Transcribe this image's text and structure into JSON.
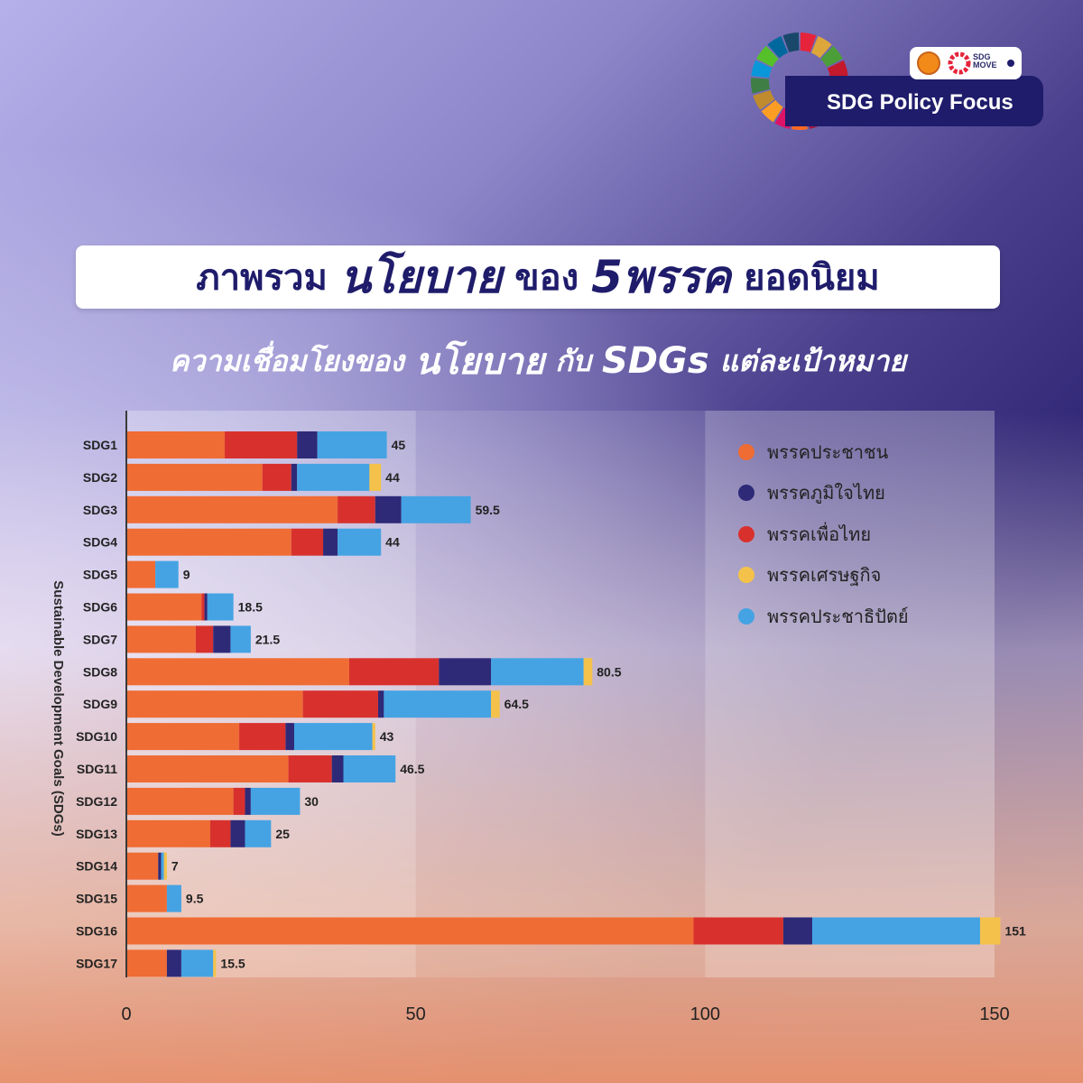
{
  "header": {
    "logo_text": "SDG Policy Focus",
    "badge_text_line1": "SDG",
    "badge_text_line2": "MOVE"
  },
  "title": {
    "line1_a": "ภาพรวม",
    "line1_b": "นโยบาย",
    "line1_c": "ของ",
    "line1_d": "5พรรค",
    "line1_e": "ยอดนิยม",
    "line2_a": "ความเชื่อมโยงของ",
    "line2_b": "นโยบาย",
    "line2_c": "กับ",
    "line2_d": "SDGs",
    "line2_e": "แต่ละเป้าหมาย"
  },
  "colors": {
    "title_navy": "#1f1c6b",
    "orange": "#ef6c34",
    "navy": "#2e2a78",
    "red": "#d8312d",
    "yellow": "#f4c24a",
    "blue": "#45a3e3"
  },
  "chart_data": {
    "type": "bar",
    "orientation": "horizontal",
    "stacked": true,
    "ylabel": "Sustainable Development Goals (SDGs)",
    "xlabel": "",
    "xlim": [
      0,
      150
    ],
    "xticks": [
      0,
      50,
      100,
      150
    ],
    "legend_position": "top-right",
    "categories": [
      "SDG1",
      "SDG2",
      "SDG3",
      "SDG4",
      "SDG5",
      "SDG6",
      "SDG7",
      "SDG8",
      "SDG9",
      "SDG10",
      "SDG11",
      "SDG12",
      "SDG13",
      "SDG14",
      "SDG15",
      "SDG16",
      "SDG17"
    ],
    "series": [
      {
        "name": "พรรคประชาชน",
        "color": "#ef6c34",
        "values": [
          17,
          23.5,
          36.5,
          28.5,
          5,
          13,
          12,
          38.5,
          30.5,
          19.5,
          28,
          18.5,
          14.5,
          5.5,
          7,
          98,
          7
        ]
      },
      {
        "name": "พรรคเพื่อไทย",
        "color": "#d8312d",
        "values": [
          12.5,
          5,
          6.5,
          5.5,
          0,
          0.5,
          3,
          15.5,
          13,
          8,
          7.5,
          2,
          3.5,
          0,
          0,
          15.5,
          0
        ]
      },
      {
        "name": "พรรคภูมิใจไทย",
        "color": "#2e2a78",
        "values": [
          3.5,
          1,
          4.5,
          2.5,
          0,
          0.5,
          3,
          9,
          1,
          1.5,
          2,
          1,
          2.5,
          0.5,
          0,
          5,
          2.5
        ]
      },
      {
        "name": "พรรคประชาธิปัตย์",
        "color": "#45a3e3",
        "values": [
          12,
          12.5,
          12,
          7.5,
          4,
          4.5,
          3.5,
          16,
          18.5,
          13.5,
          9,
          8.5,
          4.5,
          0.5,
          2.5,
          29,
          5.5
        ]
      },
      {
        "name": "พรรคเศรษฐกิจ",
        "color": "#f4c24a",
        "values": [
          0,
          2,
          0,
          0,
          0,
          0,
          0,
          1.5,
          1.5,
          0.5,
          0,
          0,
          0,
          0.5,
          0,
          3.5,
          0.5
        ]
      }
    ],
    "legend_order": [
      "พรรคประชาชน",
      "พรรคภูมิใจไทย",
      "พรรคเพื่อไทย",
      "พรรคเศรษฐกิจ",
      "พรรคประชาธิปัตย์"
    ],
    "totals": [
      "45",
      "44",
      "59.5",
      "44",
      "9",
      "18.5",
      "21.5",
      "80.5",
      "64.5",
      "43",
      "46.5",
      "30",
      "25",
      "7",
      "9.5",
      "151",
      "15.5"
    ]
  }
}
